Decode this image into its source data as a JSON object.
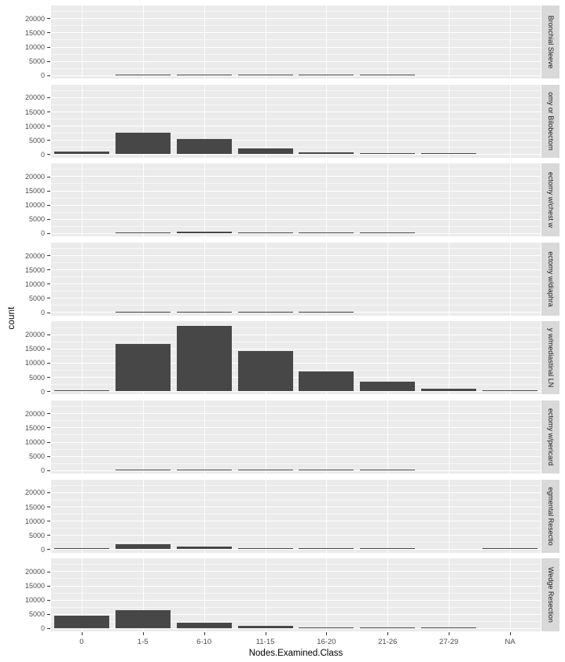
{
  "figure": {
    "colors": {
      "bar": "#474747",
      "panel_background": "#EBEBEB",
      "strip_background": "#D9D9D9",
      "gridline": "#FFFFFF",
      "axis_text": "#4D4D4D",
      "strip_text": "#1A1A1A",
      "axis_title": "#000000",
      "page_background": "#FFFFFF"
    }
  },
  "chart_data": {
    "type": "bar",
    "faceted": true,
    "facet_strip_position": "right",
    "title": "",
    "xlabel": "Nodes.Examined.Class",
    "ylabel": "count",
    "categories": [
      "0",
      "1-5",
      "6-10",
      "11-15",
      "16-20",
      "21-26",
      "27-29",
      "NA"
    ],
    "x_tick_labels": [
      "0",
      "1-5",
      "6-10",
      "11-15",
      "16-20",
      "21-26",
      "27-29",
      "NA"
    ],
    "y_ticks": [
      0,
      5000,
      10000,
      15000,
      20000
    ],
    "y_tick_labels": [
      "0",
      "5000",
      "10000",
      "15000",
      "20000"
    ],
    "y_minor_ticks": [
      2500,
      7500,
      12500,
      17500,
      22500
    ],
    "ylim": [
      -1200,
      24500
    ],
    "grid": "major-and-minor-white-on-grey",
    "legend": "none",
    "series": [
      {
        "strip_label": "Bronchial Sleeve",
        "values": [
          0,
          200,
          250,
          200,
          120,
          80,
          0,
          0
        ]
      },
      {
        "strip_label": "omy or Bilobectom",
        "values": [
          900,
          7600,
          5300,
          2100,
          600,
          300,
          80,
          0
        ]
      },
      {
        "strip_label": "ectomy w/chest w",
        "values": [
          0,
          200,
          450,
          250,
          200,
          150,
          0,
          0
        ]
      },
      {
        "strip_label": "ectomy w/diaphra",
        "values": [
          0,
          150,
          150,
          60,
          40,
          0,
          0,
          0
        ]
      },
      {
        "strip_label": "y w/mediastinal LN",
        "values": [
          250,
          16500,
          23000,
          14200,
          6800,
          3400,
          900,
          250
        ]
      },
      {
        "strip_label": "ectomy w/pericard",
        "values": [
          0,
          80,
          60,
          50,
          60,
          40,
          0,
          0
        ]
      },
      {
        "strip_label": "egmental Resectio",
        "values": [
          250,
          1700,
          900,
          300,
          150,
          100,
          0,
          60
        ]
      },
      {
        "strip_label": "Wedge Resection",
        "values": [
          4400,
          6200,
          1800,
          650,
          350,
          200,
          100,
          0
        ]
      }
    ]
  }
}
